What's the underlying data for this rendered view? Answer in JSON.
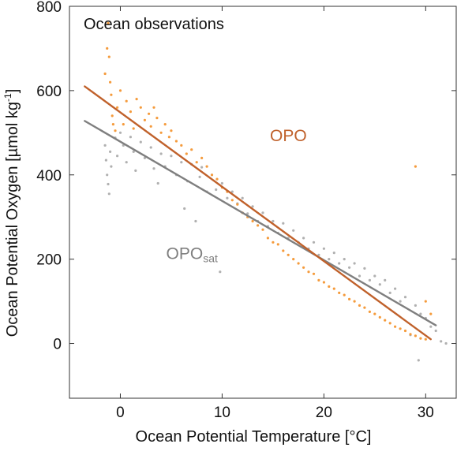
{
  "chart_data": {
    "type": "scatter",
    "title": "Ocean observations",
    "xlabel": "Ocean Potential Temperature [°C]",
    "ylabel": {
      "main": "Ocean Potential Oxygen  [µmol kg",
      "sup": "-1",
      "close": "]"
    },
    "xlim": [
      -5,
      33
    ],
    "ylim": [
      -130,
      800
    ],
    "xticks": [
      0,
      10,
      20,
      30
    ],
    "xtick_labels": [
      "0",
      "10",
      "20",
      "30"
    ],
    "yticks": [
      0,
      200,
      400,
      600,
      800
    ],
    "ytick_labels": [
      "0",
      "200",
      "400",
      "600",
      "800"
    ],
    "grid": false,
    "series": [
      {
        "name": "OPOsat",
        "label_parts": {
          "main": "OPO",
          "sub": "sat"
        },
        "color": "#b0b0b0",
        "fit_color": "#7f7f7f",
        "label_position": [
          4.5,
          200
        ],
        "fit": {
          "x": [
            -3.5,
            31
          ],
          "y": [
            528,
            43
          ]
        },
        "points": [
          [
            -1.5,
            470
          ],
          [
            -1.4,
            435
          ],
          [
            -1.3,
            400
          ],
          [
            -1.2,
            378
          ],
          [
            -1.1,
            355
          ],
          [
            -1.0,
            455
          ],
          [
            -0.9,
            420
          ],
          [
            -0.5,
            488
          ],
          [
            -0.3,
            445
          ],
          [
            0.0,
            500
          ],
          [
            0.3,
            470
          ],
          [
            0.6,
            430
          ],
          [
            1.0,
            490
          ],
          [
            1.3,
            455
          ],
          [
            1.5,
            410
          ],
          [
            2.0,
            478
          ],
          [
            2.4,
            440
          ],
          [
            3.0,
            465
          ],
          [
            3.3,
            415
          ],
          [
            3.7,
            380
          ],
          [
            4.0,
            450
          ],
          [
            4.4,
            420
          ],
          [
            5.0,
            445
          ],
          [
            5.5,
            400
          ],
          [
            6.0,
            430
          ],
          [
            6.3,
            320
          ],
          [
            6.6,
            385
          ],
          [
            7.0,
            425
          ],
          [
            7.4,
            290
          ],
          [
            7.8,
            395
          ],
          [
            8.0,
            418
          ],
          [
            8.5,
            360
          ],
          [
            9.0,
            400
          ],
          [
            9.4,
            365
          ],
          [
            9.8,
            170
          ],
          [
            10.0,
            380
          ],
          [
            10.5,
            345
          ],
          [
            11.0,
            360
          ],
          [
            11.5,
            332
          ],
          [
            12.0,
            345
          ],
          [
            12.5,
            308
          ],
          [
            13.0,
            325
          ],
          [
            13.5,
            290
          ],
          [
            14.0,
            310
          ],
          [
            14.5,
            278
          ],
          [
            15.0,
            290
          ],
          [
            15.5,
            262
          ],
          [
            16.0,
            285
          ],
          [
            16.5,
            250
          ],
          [
            17.0,
            268
          ],
          [
            17.5,
            240
          ],
          [
            18.0,
            250
          ],
          [
            18.5,
            225
          ],
          [
            19.0,
            240
          ],
          [
            19.5,
            210
          ],
          [
            20.0,
            225
          ],
          [
            20.5,
            200
          ],
          [
            21.0,
            215
          ],
          [
            21.5,
            190
          ],
          [
            22.0,
            200
          ],
          [
            22.5,
            180
          ],
          [
            23.0,
            190
          ],
          [
            23.5,
            160
          ],
          [
            24.0,
            178
          ],
          [
            24.5,
            150
          ],
          [
            25.0,
            160
          ],
          [
            25.5,
            140
          ],
          [
            26.0,
            150
          ],
          [
            26.5,
            120
          ],
          [
            27.0,
            130
          ],
          [
            27.5,
            100
          ],
          [
            28.0,
            110
          ],
          [
            28.5,
            20
          ],
          [
            29.0,
            90
          ],
          [
            29.3,
            -40
          ],
          [
            29.5,
            70
          ],
          [
            30.0,
            60
          ],
          [
            30.5,
            40
          ],
          [
            31.0,
            30
          ],
          [
            31.5,
            5
          ],
          [
            32.0,
            0
          ]
        ]
      },
      {
        "name": "OPO",
        "label_parts": {
          "main": "OPO",
          "sub": ""
        },
        "color": "#f59b3c",
        "fit_color": "#c0612b",
        "label_position": [
          14.7,
          480
        ],
        "fit": {
          "x": [
            -3.5,
            30.5
          ],
          "y": [
            610,
            10
          ]
        },
        "points": [
          [
            -1.5,
            640
          ],
          [
            -1.3,
            700
          ],
          [
            -1.2,
            760
          ],
          [
            -1.1,
            680
          ],
          [
            -1.0,
            620
          ],
          [
            -0.9,
            590
          ],
          [
            -0.8,
            540
          ],
          [
            -0.7,
            520
          ],
          [
            -0.5,
            505
          ],
          [
            -0.3,
            560
          ],
          [
            0.0,
            600
          ],
          [
            0.3,
            520
          ],
          [
            0.6,
            575
          ],
          [
            1.0,
            550
          ],
          [
            1.3,
            510
          ],
          [
            1.6,
            580
          ],
          [
            2.0,
            560
          ],
          [
            2.4,
            530
          ],
          [
            2.8,
            545
          ],
          [
            3.0,
            515
          ],
          [
            3.3,
            560
          ],
          [
            3.6,
            535
          ],
          [
            4.0,
            500
          ],
          [
            4.4,
            520
          ],
          [
            4.8,
            490
          ],
          [
            5.0,
            505
          ],
          [
            5.5,
            480
          ],
          [
            6.0,
            470
          ],
          [
            6.5,
            450
          ],
          [
            7.0,
            460
          ],
          [
            7.5,
            430
          ],
          [
            8.0,
            440
          ],
          [
            8.5,
            420
          ],
          [
            9.0,
            400
          ],
          [
            9.5,
            390
          ],
          [
            10.0,
            370
          ],
          [
            10.5,
            360
          ],
          [
            11.0,
            340
          ],
          [
            11.5,
            330
          ],
          [
            12.0,
            310
          ],
          [
            12.5,
            300
          ],
          [
            13.0,
            290
          ],
          [
            13.5,
            280
          ],
          [
            14.0,
            270
          ],
          [
            14.5,
            250
          ],
          [
            15.0,
            240
          ],
          [
            15.5,
            235
          ],
          [
            16.0,
            220
          ],
          [
            16.5,
            210
          ],
          [
            17.0,
            200
          ],
          [
            17.5,
            190
          ],
          [
            18.0,
            180
          ],
          [
            18.5,
            170
          ],
          [
            19.0,
            165
          ],
          [
            19.5,
            150
          ],
          [
            20.0,
            145
          ],
          [
            20.5,
            135
          ],
          [
            21.0,
            130
          ],
          [
            21.5,
            120
          ],
          [
            22.0,
            115
          ],
          [
            22.5,
            105
          ],
          [
            23.0,
            100
          ],
          [
            23.5,
            90
          ],
          [
            24.0,
            85
          ],
          [
            24.5,
            75
          ],
          [
            25.0,
            70
          ],
          [
            25.5,
            62
          ],
          [
            26.0,
            55
          ],
          [
            26.5,
            48
          ],
          [
            27.0,
            40
          ],
          [
            27.5,
            35
          ],
          [
            28.0,
            30
          ],
          [
            28.5,
            22
          ],
          [
            29.0,
            18
          ],
          [
            29.5,
            12
          ],
          [
            30.0,
            10
          ],
          [
            29.0,
            420
          ],
          [
            30.0,
            100
          ],
          [
            30.5,
            70
          ]
        ]
      }
    ]
  }
}
